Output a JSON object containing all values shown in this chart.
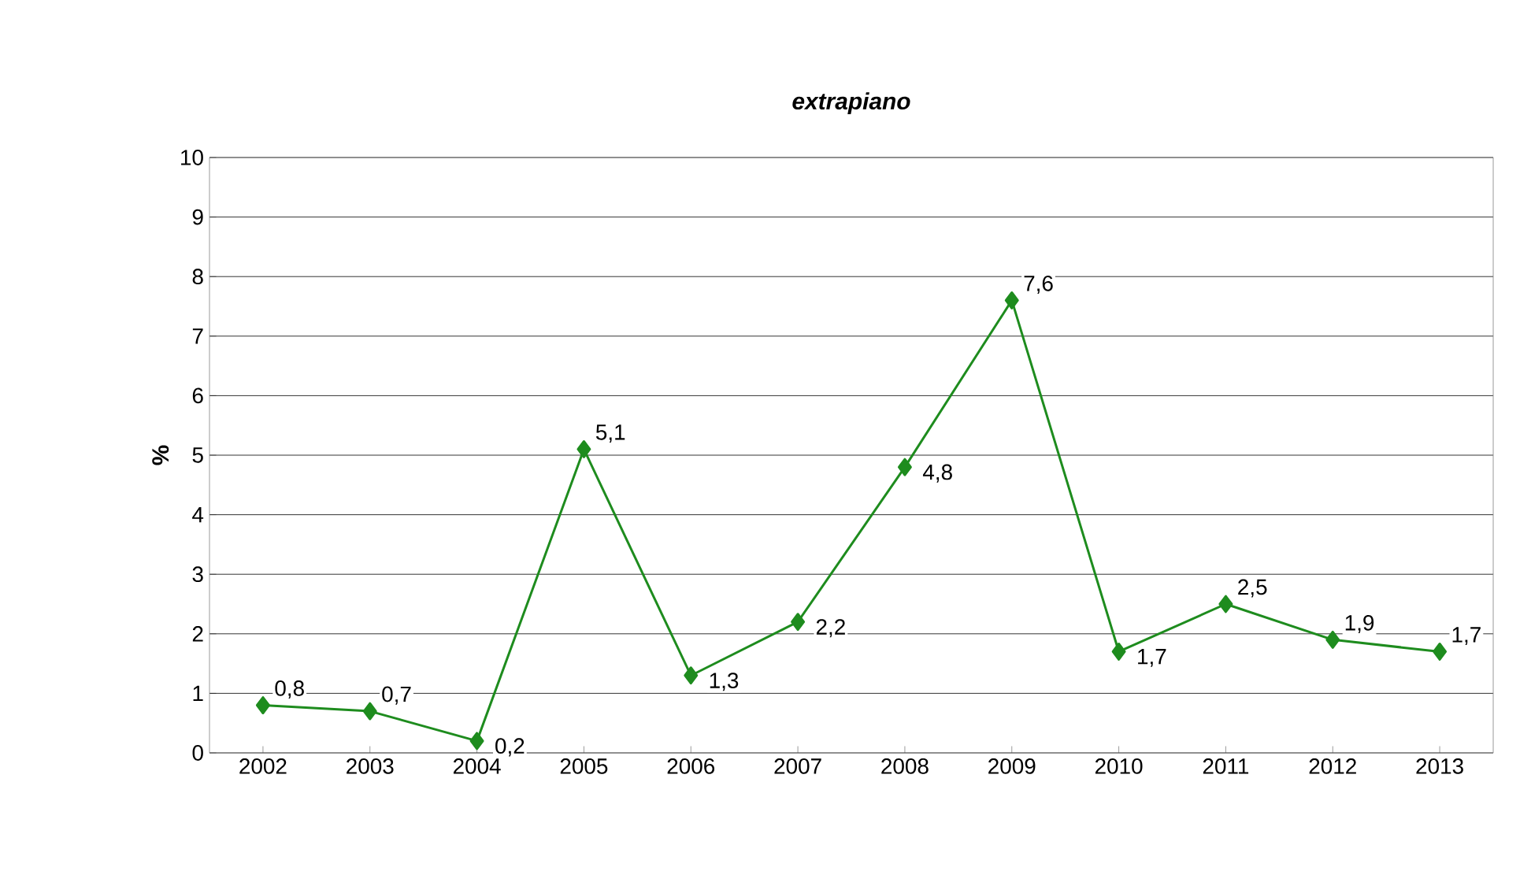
{
  "chart_data": {
    "type": "line",
    "title": "extrapiano",
    "ylabel": "%",
    "categories": [
      "2002",
      "2003",
      "2004",
      "2005",
      "2006",
      "2007",
      "2008",
      "2009",
      "2010",
      "2011",
      "2012",
      "2013"
    ],
    "series": [
      {
        "color": "#1e8c1e",
        "values": [
          0.8,
          0.7,
          0.2,
          5.1,
          1.3,
          2.2,
          4.8,
          7.6,
          1.7,
          2.5,
          1.9,
          1.7
        ],
        "value_labels": [
          "0,8",
          "0,7",
          "0,2",
          "5,1",
          "1,3",
          "2,2",
          "4,8",
          "7,6",
          "1,7",
          "2,5",
          "1,9",
          "1,7"
        ]
      }
    ],
    "ylim": [
      0,
      10
    ],
    "yticks": [
      0,
      1,
      2,
      3,
      4,
      5,
      6,
      7,
      8,
      9,
      10
    ],
    "grid": "y",
    "marker": "diamond",
    "line_style": "solid"
  }
}
